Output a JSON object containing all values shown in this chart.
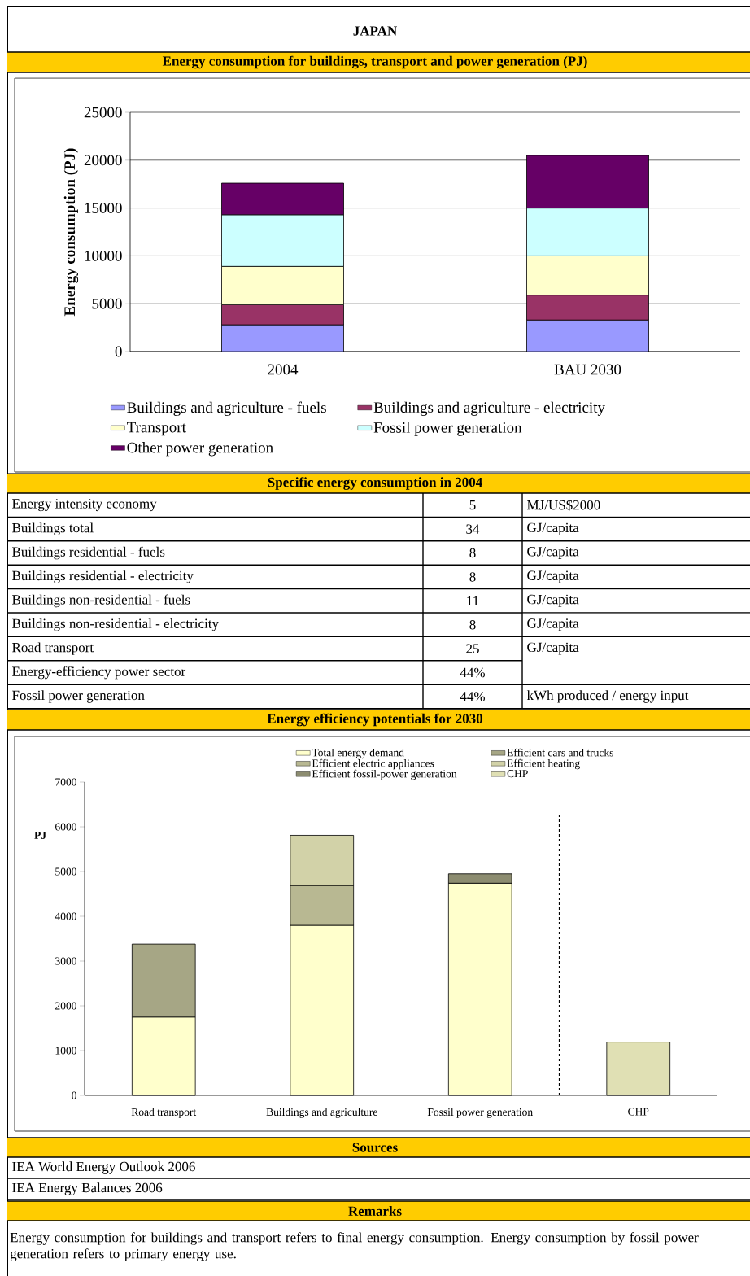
{
  "chart_data": [
    {
      "type": "bar",
      "title": "JAPAN",
      "subtitle": "Energy consumption for buildings, transport and power generation (PJ)",
      "ylabel": "Energy consumption (PJ)",
      "categories": [
        "2004",
        "BAU 2030"
      ],
      "stacked": true,
      "ylim": [
        0,
        25000
      ],
      "yticks": [
        0,
        5000,
        10000,
        15000,
        20000,
        25000
      ],
      "grid": "y",
      "legend": "bottom",
      "series": [
        {
          "name": "Buildings and agriculture - fuels",
          "color": "#9999ff",
          "values": [
            2800,
            3300
          ]
        },
        {
          "name": "Buildings and agriculture - electricity",
          "color": "#993366",
          "values": [
            2100,
            2600
          ]
        },
        {
          "name": "Transport",
          "color": "#ffffcc",
          "values": [
            4000,
            4100
          ]
        },
        {
          "name": "Fossil power generation",
          "color": "#ccffff",
          "values": [
            5400,
            5000
          ]
        },
        {
          "name": "Other power generation",
          "color": "#660066",
          "values": [
            3300,
            5500
          ]
        }
      ]
    },
    {
      "type": "other",
      "title": "Specific energy consumption in 2004",
      "categories": [
        "Energy intensity economy",
        "Buildings total",
        "Buildings residential - fuels",
        "Buildings residential - electricity",
        "Buildings non-residential - fuels",
        "Buildings non-residential - electricity",
        "Road transport",
        "Energy-efficiency power sector",
        "Fossil power generation"
      ],
      "value_labels": [
        "5",
        "34",
        "8",
        "8",
        "11",
        "8",
        "25",
        "44%",
        "44%"
      ],
      "y2_categories": [
        "MJ/US$2000",
        "GJ/capita",
        "GJ/capita",
        "GJ/capita",
        "GJ/capita",
        "GJ/capita",
        "GJ/capita",
        null,
        "kWh produced / energy input"
      ]
    },
    {
      "type": "bar",
      "title": "Energy efficiency potentials for 2030",
      "ylabel": "PJ",
      "categories": [
        "Road transport",
        "Buildings and agriculture",
        "Fossil power generation",
        "CHP"
      ],
      "stacked": true,
      "ylim": [
        0,
        7000
      ],
      "yticks": [
        0,
        1000,
        2000,
        3000,
        4000,
        5000,
        6000,
        7000
      ],
      "legend": "top",
      "annotations": [
        "Sources",
        "IEA World Energy Outlook 2006",
        "IEA Energy Balances 2006",
        "Remarks",
        "Energy consumption for buildings and transport refers to final energy consumption. Energy consumption by fossil power generation refers to primary energy use."
      ],
      "series": [
        {
          "name": "Total energy demand",
          "color": "#ffffcc",
          "values": [
            1750,
            3800,
            4740,
            null
          ]
        },
        {
          "name": "Efficient cars and trucks",
          "color": "#a6a685",
          "values": [
            1630,
            null,
            null,
            null
          ]
        },
        {
          "name": "Efficient electric appliances",
          "color": "#b8b892",
          "values": [
            null,
            890,
            null,
            null
          ]
        },
        {
          "name": "Efficient heating",
          "color": "#d2d2a8",
          "values": [
            null,
            1120,
            null,
            null
          ]
        },
        {
          "name": "Efficient fossil-power generation",
          "color": "#8c8c70",
          "values": [
            null,
            null,
            210,
            null
          ]
        },
        {
          "name": "CHP",
          "color": "#e0e0b4",
          "values": [
            null,
            null,
            null,
            1190
          ]
        }
      ]
    }
  ]
}
